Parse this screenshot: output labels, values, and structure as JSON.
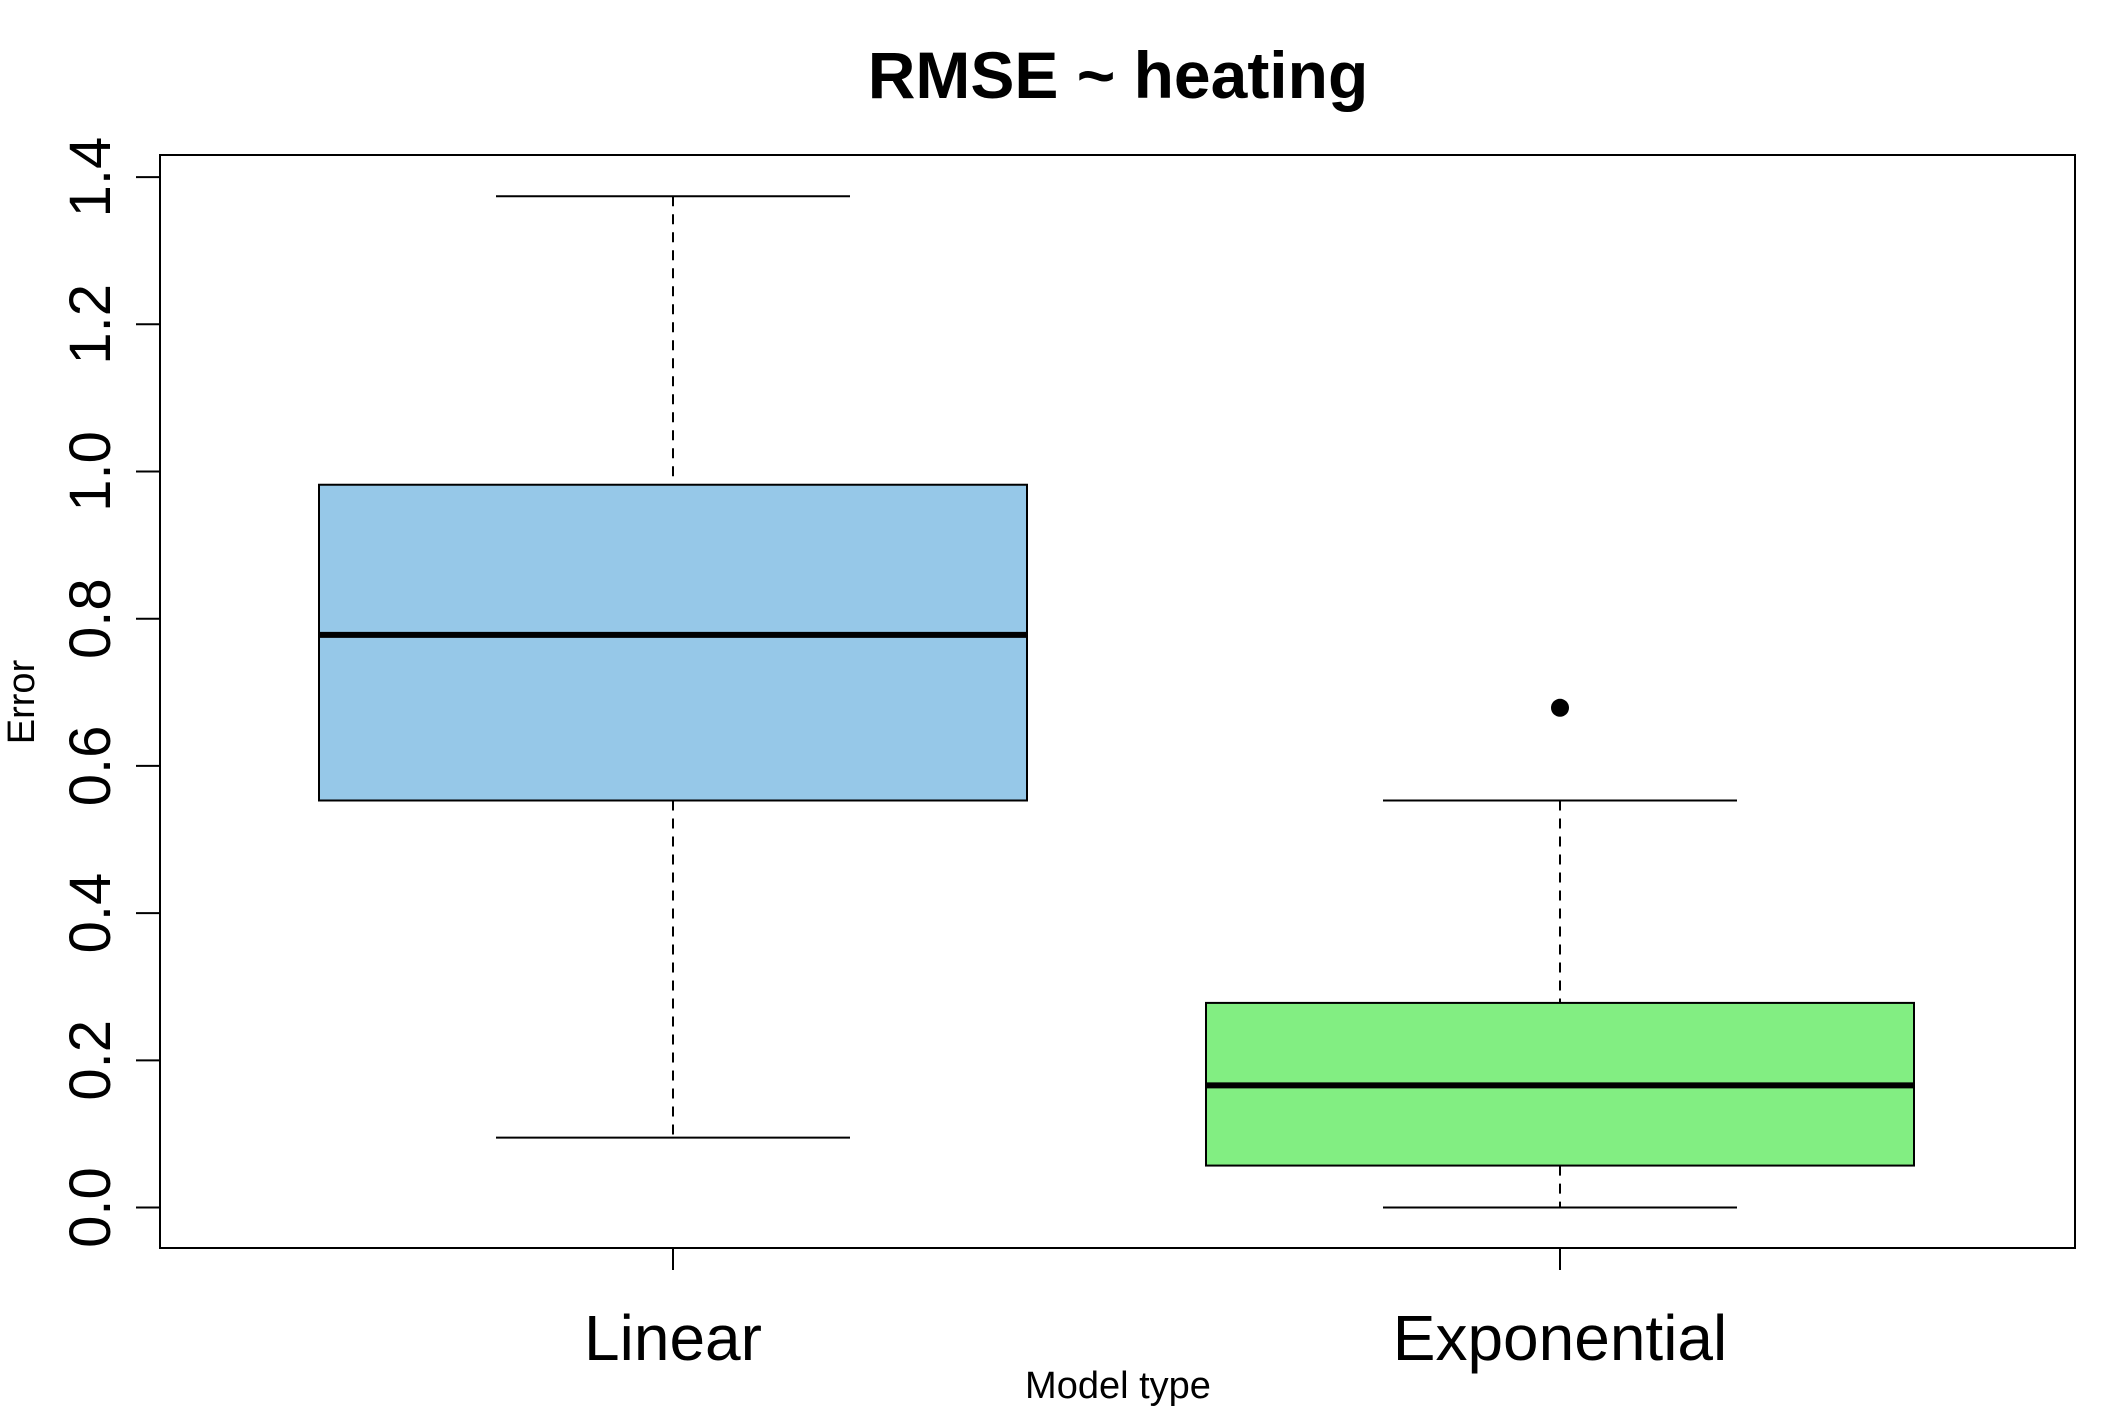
{
  "chart_data": {
    "type": "boxplot",
    "title": "RMSE ~ heating",
    "xlabel": "Model type",
    "ylabel": "Error",
    "ylim": [
      -0.055,
      1.43
    ],
    "yticks": [
      "0.0",
      "0.2",
      "0.4",
      "0.6",
      "0.8",
      "1.0",
      "1.2",
      "1.4"
    ],
    "grid": false,
    "legend": "none",
    "categories": [
      "Linear",
      "Exponential"
    ],
    "boxes": [
      {
        "category": "Linear",
        "min": 0.095,
        "q1": 0.553,
        "median": 0.778,
        "q3": 0.982,
        "max": 1.374,
        "outliers": [],
        "color": "#96c8e8"
      },
      {
        "category": "Exponential",
        "min": 0.0,
        "q1": 0.057,
        "median": 0.166,
        "q3": 0.278,
        "max": 0.553,
        "outliers": [
          0.679
        ],
        "color": "#82ee82"
      }
    ]
  }
}
